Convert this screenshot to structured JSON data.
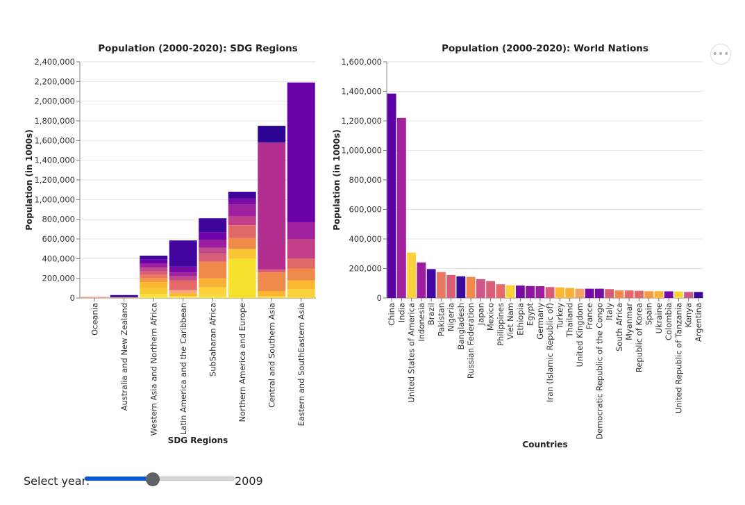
{
  "chart_data": [
    {
      "type": "bar",
      "stacked": true,
      "title": "Population (2000-2020): SDG Regions",
      "xlabel": "SDG Regions",
      "ylabel": "Population (in 1000s)",
      "ylim": [
        0,
        2400000
      ],
      "yticks": [
        "0",
        "200,000",
        "400,000",
        "600,000",
        "800,000",
        "1,000,000",
        "1,200,000",
        "1,400,000",
        "1,600,000",
        "1,800,000",
        "2,000,000",
        "2,200,000",
        "2,400,000"
      ],
      "categories": [
        "Oceania",
        "Australia and New Zealand",
        "Western Asia and Northern Africa",
        "Latin America and the Caribbean",
        "SubSaharan Africa",
        "Northern America and Europe",
        "Central and Southern Asia",
        "Eastern and SouthEastern Asia"
      ],
      "totals": [
        12000,
        30000,
        430000,
        585000,
        810000,
        1080000,
        1750000,
        2190000
      ],
      "segments": [
        [
          {
            "value": 12000,
            "color": "#f4a582"
          }
        ],
        [
          {
            "value": 8000,
            "color": "#f0a060"
          },
          {
            "value": 22000,
            "color": "#3a0a9a"
          }
        ],
        [
          {
            "value": 40000,
            "color": "#f8e23a"
          },
          {
            "value": 60000,
            "color": "#f9c932"
          },
          {
            "value": 60000,
            "color": "#fbb72f"
          },
          {
            "value": 40000,
            "color": "#f59a43"
          },
          {
            "value": 40000,
            "color": "#ea7860"
          },
          {
            "value": 30000,
            "color": "#d95d76"
          },
          {
            "value": 40000,
            "color": "#c14a8c"
          },
          {
            "value": 40000,
            "color": "#a0219e"
          },
          {
            "value": 40000,
            "color": "#6a00a8"
          },
          {
            "value": 40000,
            "color": "#3e049c"
          }
        ],
        [
          {
            "value": 20000,
            "color": "#f8e23a"
          },
          {
            "value": 30000,
            "color": "#fbb72f"
          },
          {
            "value": 30000,
            "color": "#f4a582"
          },
          {
            "value": 100000,
            "color": "#e66868"
          },
          {
            "value": 40000,
            "color": "#c14a8c"
          },
          {
            "value": 40000,
            "color": "#a0219e"
          },
          {
            "value": 60000,
            "color": "#7a0aa6"
          },
          {
            "value": 265000,
            "color": "#42069e"
          }
        ],
        [
          {
            "value": 30000,
            "color": "#f8e23a"
          },
          {
            "value": 80000,
            "color": "#fbd23b"
          },
          {
            "value": 90000,
            "color": "#f9b233"
          },
          {
            "value": 170000,
            "color": "#f08a4b"
          },
          {
            "value": 80000,
            "color": "#d95d76"
          },
          {
            "value": 60000,
            "color": "#c14a8c"
          },
          {
            "value": 80000,
            "color": "#9c1e9e"
          },
          {
            "value": 80000,
            "color": "#6e03a7"
          },
          {
            "value": 140000,
            "color": "#3e049c"
          }
        ],
        [
          {
            "value": 400000,
            "color": "#f5e12b"
          },
          {
            "value": 100000,
            "color": "#fbc432"
          },
          {
            "value": 110000,
            "color": "#f08a4b"
          },
          {
            "value": 130000,
            "color": "#e06968"
          },
          {
            "value": 90000,
            "color": "#c43e8a"
          },
          {
            "value": 120000,
            "color": "#a0219e"
          },
          {
            "value": 60000,
            "color": "#7a0aa6"
          },
          {
            "value": 70000,
            "color": "#3e049c"
          }
        ],
        [
          {
            "value": 20000,
            "color": "#fbd23b"
          },
          {
            "value": 50000,
            "color": "#fbb72f"
          },
          {
            "value": 190000,
            "color": "#f08a4b"
          },
          {
            "value": 30000,
            "color": "#d95d76"
          },
          {
            "value": 1290000,
            "color": "#b22f8f"
          },
          {
            "value": 170000,
            "color": "#2c0594"
          }
        ],
        [
          {
            "value": 90000,
            "color": "#fbd23b"
          },
          {
            "value": 90000,
            "color": "#fbb72f"
          },
          {
            "value": 120000,
            "color": "#f08a4b"
          },
          {
            "value": 100000,
            "color": "#e06968"
          },
          {
            "value": 200000,
            "color": "#c43e8a"
          },
          {
            "value": 170000,
            "color": "#a0219e"
          },
          {
            "value": 1420000,
            "color": "#6a00a8"
          }
        ]
      ]
    },
    {
      "type": "bar",
      "title": "Population (2000-2020): World Nations",
      "xlabel": "Countries",
      "ylabel": "Population (in 1000s)",
      "ylim": [
        0,
        1600000
      ],
      "yticks": [
        "0",
        "200,000",
        "400,000",
        "600,000",
        "800,000",
        "1,000,000",
        "1,200,000",
        "1,400,000",
        "1,600,000"
      ],
      "categories": [
        "China",
        "India",
        "United States of America",
        "Indonesia",
        "Brazil",
        "Pakistan",
        "Nigeria",
        "Bangladesh",
        "Russian Federation",
        "Japan",
        "Mexico",
        "Philippines",
        "Viet Nam",
        "Ethiopia",
        "Egypt",
        "Germany",
        "Iran (Islamic Republic of)",
        "Turkey",
        "Thailand",
        "United Kingdom",
        "France",
        "Democratic Republic of the Congo",
        "Italy",
        "South Africa",
        "Myanmar",
        "Republic of Korea",
        "Spain",
        "Ukraine",
        "Colombia",
        "United Republic of Tanzania",
        "Kenya",
        "Argentina"
      ],
      "values": [
        1385000,
        1220000,
        308000,
        241000,
        196000,
        176000,
        156000,
        147000,
        143000,
        128000,
        114000,
        93000,
        87000,
        84000,
        81000,
        80000,
        74000,
        72000,
        68000,
        63000,
        63000,
        63000,
        60000,
        51000,
        51000,
        49000,
        46000,
        46000,
        45000,
        44000,
        41000,
        41000
      ],
      "colors": [
        "#5c01a6",
        "#a0219e",
        "#fbd23b",
        "#9c1e9e",
        "#4406a1",
        "#ea7860",
        "#d95d76",
        "#3a0a9a",
        "#f08a4b",
        "#d0568a",
        "#d95d76",
        "#e66868",
        "#fbd23b",
        "#7a0aa6",
        "#8e13a4",
        "#9c1e9e",
        "#d95d76",
        "#fbb72f",
        "#f9b233",
        "#f0a060",
        "#7a0aa6",
        "#7a0aa6",
        "#d95d76",
        "#f08a4b",
        "#e66868",
        "#e06968",
        "#f59a43",
        "#f9b233",
        "#7a0aa6",
        "#fbd23b",
        "#d0568a",
        "#3e049c"
      ]
    }
  ],
  "slider": {
    "label": "Select year:",
    "value": "2009",
    "position": 0.45
  },
  "menu_icon": "more-horizontal-icon",
  "menu_glyph": "•••"
}
